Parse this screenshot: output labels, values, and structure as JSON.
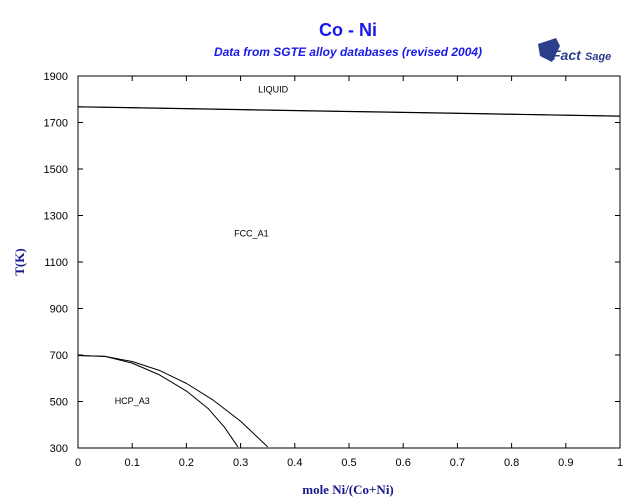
{
  "chart_data": {
    "type": "line",
    "title": "Co - Ni",
    "subtitle": "Data from SGTE alloy databases (revised 2004)",
    "xlabel": "mole Ni/(Co+Ni)",
    "ylabel": "T(K)",
    "xlim": [
      0,
      1
    ],
    "ylim": [
      300,
      1900
    ],
    "x_ticks": [
      "0",
      "0.1",
      "0.2",
      "0.3",
      "0.4",
      "0.5",
      "0.6",
      "0.7",
      "0.8",
      "0.9",
      "1"
    ],
    "y_ticks": [
      "300",
      "500",
      "700",
      "900",
      "1100",
      "1300",
      "1500",
      "1700",
      "1900"
    ],
    "grid": false,
    "series": [
      {
        "points": [
          [
            0,
            1768
          ],
          [
            0.25,
            1758
          ],
          [
            0.5,
            1748
          ],
          [
            0.75,
            1738
          ],
          [
            1,
            1728
          ]
        ]
      },
      {
        "points": [
          [
            0,
            1767
          ],
          [
            0.25,
            1757
          ],
          [
            0.5,
            1747
          ],
          [
            0.75,
            1737
          ],
          [
            1,
            1727
          ]
        ]
      },
      {
        "points": [
          [
            0,
            698
          ],
          [
            0.05,
            694
          ],
          [
            0.1,
            672
          ],
          [
            0.15,
            634
          ],
          [
            0.2,
            578
          ],
          [
            0.25,
            505
          ],
          [
            0.3,
            415
          ],
          [
            0.35,
            305
          ]
        ]
      },
      {
        "points": [
          [
            0,
            698
          ],
          [
            0.05,
            694
          ],
          [
            0.1,
            665
          ],
          [
            0.15,
            615
          ],
          [
            0.2,
            545
          ],
          [
            0.24,
            470
          ],
          [
            0.27,
            390
          ],
          [
            0.295,
            305
          ]
        ]
      }
    ],
    "annotations": [
      {
        "text": "LIQUID",
        "x": 0.36,
        "y": 1830
      },
      {
        "text": "FCC_A1",
        "x": 0.32,
        "y": 1210
      },
      {
        "text": "HCP_A3",
        "x": 0.1,
        "y": 490
      }
    ]
  },
  "logo": {
    "text_a": "Fact",
    "text_b": "Sage"
  }
}
